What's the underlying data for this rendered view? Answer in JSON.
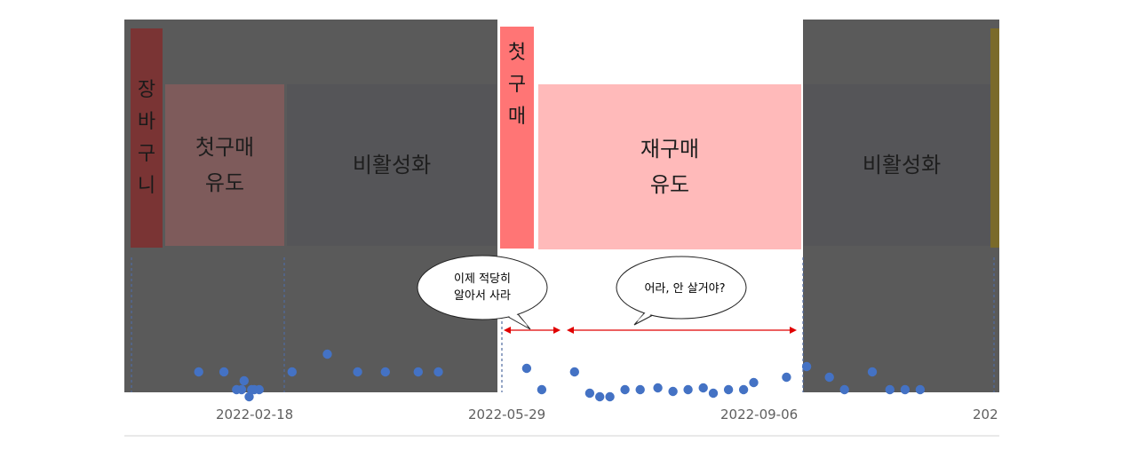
{
  "stages": {
    "cart": {
      "label": "장\n바\n구\n니"
    },
    "first_nudge": {
      "label": "첫구매\n유도"
    },
    "inactive_1": {
      "label": "비활성화"
    },
    "first_purchase": {
      "label": "첫\n구\n매"
    },
    "repurchase_nudge": {
      "label": "재구매\n유도"
    },
    "inactive_2": {
      "label": "비활성화"
    }
  },
  "bubbles": {
    "left": {
      "text": "이제 적당히\n알아서 사라"
    },
    "right": {
      "text": "어라, 안 살거야?"
    }
  },
  "axis": {
    "ticks": [
      "2022-02-18",
      "2022-05-29",
      "2022-09-06",
      "202"
    ]
  },
  "colors": {
    "dark_overlay": "#5a5a5a",
    "cart": "#7a3434",
    "first_nudge": "#7e5b5b",
    "first_purchase": "#ff7575",
    "repurchase_nudge": "#ffbaba",
    "dot": "#4472c4",
    "arrow": "#e00000",
    "dashed_line": "#4f6ba0"
  },
  "points": [
    {
      "d": "2022-01-26",
      "v": 0
    },
    {
      "d": "2022-02-05",
      "v": 0
    },
    {
      "d": "2022-02-10",
      "v": -1
    },
    {
      "d": "2022-02-12",
      "v": -1
    },
    {
      "d": "2022-02-13",
      "v": -0.5
    },
    {
      "d": "2022-02-15",
      "v": -1.4
    },
    {
      "d": "2022-02-16",
      "v": -1
    },
    {
      "d": "2022-02-17",
      "v": -1
    },
    {
      "d": "2022-02-19",
      "v": -1
    },
    {
      "d": "2022-03-04",
      "v": 0
    },
    {
      "d": "2022-03-18",
      "v": 1
    },
    {
      "d": "2022-03-30",
      "v": 0
    },
    {
      "d": "2022-04-10",
      "v": 0
    },
    {
      "d": "2022-04-23",
      "v": 0
    },
    {
      "d": "2022-05-01",
      "v": 0
    },
    {
      "d": "2022-06-05",
      "v": 0.2
    },
    {
      "d": "2022-06-11",
      "v": -1
    },
    {
      "d": "2022-06-24",
      "v": 0
    },
    {
      "d": "2022-06-30",
      "v": -1.2
    },
    {
      "d": "2022-07-04",
      "v": -1.4
    },
    {
      "d": "2022-07-08",
      "v": -1.4
    },
    {
      "d": "2022-07-14",
      "v": -1
    },
    {
      "d": "2022-07-20",
      "v": -1
    },
    {
      "d": "2022-07-27",
      "v": -0.9
    },
    {
      "d": "2022-08-02",
      "v": -1.1
    },
    {
      "d": "2022-08-08",
      "v": -1
    },
    {
      "d": "2022-08-14",
      "v": -0.9
    },
    {
      "d": "2022-08-18",
      "v": -1.2
    },
    {
      "d": "2022-08-24",
      "v": -1
    },
    {
      "d": "2022-08-30",
      "v": -1
    },
    {
      "d": "2022-09-03",
      "v": -0.6
    },
    {
      "d": "2022-09-16",
      "v": -0.3
    },
    {
      "d": "2022-09-24",
      "v": 0.3
    },
    {
      "d": "2022-10-03",
      "v": -0.3
    },
    {
      "d": "2022-10-09",
      "v": -1
    },
    {
      "d": "2022-10-20",
      "v": 0
    },
    {
      "d": "2022-10-27",
      "v": -1
    },
    {
      "d": "2022-11-02",
      "v": -1
    },
    {
      "d": "2022-11-08",
      "v": -1
    }
  ]
}
